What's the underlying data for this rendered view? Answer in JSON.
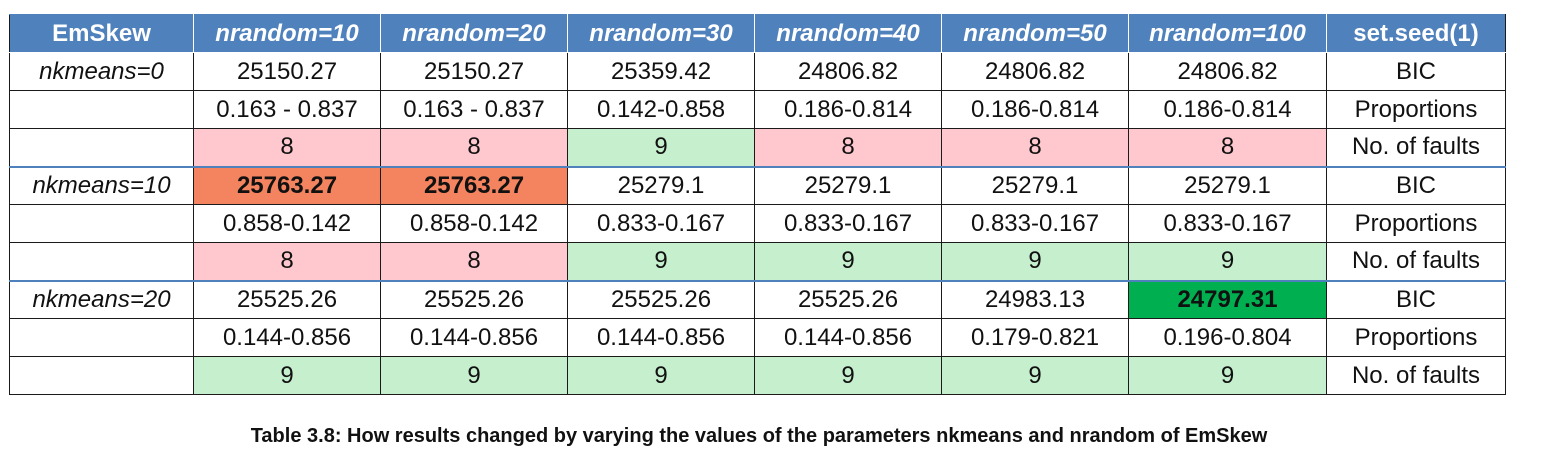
{
  "table": {
    "headers": [
      "EmSkew",
      "nrandom=10",
      "nrandom=20",
      "nrandom=30",
      "nrandom=40",
      "nrandom=50",
      "nrandom=100",
      "set.seed(1)"
    ],
    "groups": [
      {
        "label": "nkmeans=0",
        "bic": [
          "25150.27",
          "25150.27",
          "25359.42",
          "24806.82",
          "24806.82",
          "24806.82"
        ],
        "bic_label": "BIC",
        "proportions": [
          "0.163 - 0.837",
          "0.163 - 0.837",
          "0.142-0.858",
          "0.186-0.814",
          "0.186-0.814",
          "0.186-0.814"
        ],
        "proportions_label": "Proportions",
        "faults": [
          "8",
          "8",
          "9",
          "8",
          "8",
          "8"
        ],
        "faults_label": "No. of faults"
      },
      {
        "label": "nkmeans=10",
        "bic": [
          "25763.27",
          "25763.27",
          "25279.1",
          "25279.1",
          "25279.1",
          "25279.1"
        ],
        "bic_label": "BIC",
        "proportions": [
          "0.858-0.142",
          "0.858-0.142",
          "0.833-0.167",
          "0.833-0.167",
          "0.833-0.167",
          "0.833-0.167"
        ],
        "proportions_label": "Proportions",
        "faults": [
          "8",
          "8",
          "9",
          "9",
          "9",
          "9"
        ],
        "faults_label": "No. of faults"
      },
      {
        "label": "nkmeans=20",
        "bic": [
          "25525.26",
          "25525.26",
          "25525.26",
          "25525.26",
          "24983.13",
          "24797.31"
        ],
        "bic_label": "BIC",
        "proportions": [
          "0.144-0.856",
          "0.144-0.856",
          "0.144-0.856",
          "0.144-0.856",
          "0.179-0.821",
          "0.196-0.804"
        ],
        "proportions_label": "Proportions",
        "faults": [
          "9",
          "9",
          "9",
          "9",
          "9",
          "9"
        ],
        "faults_label": "No. of faults"
      }
    ],
    "colors": {
      "header": "#4f81bd",
      "fault_bad_bg": "#ffc7ce",
      "fault_bad_text": "#9c0006",
      "fault_good_bg": "#c6efce",
      "fault_good_text": "#006100",
      "bic_high": "#f4845f",
      "bic_best": "#00b050"
    }
  },
  "caption": "Table 3.8: How results changed by varying the values of the parameters nkmeans and nrandom of EmSkew"
}
